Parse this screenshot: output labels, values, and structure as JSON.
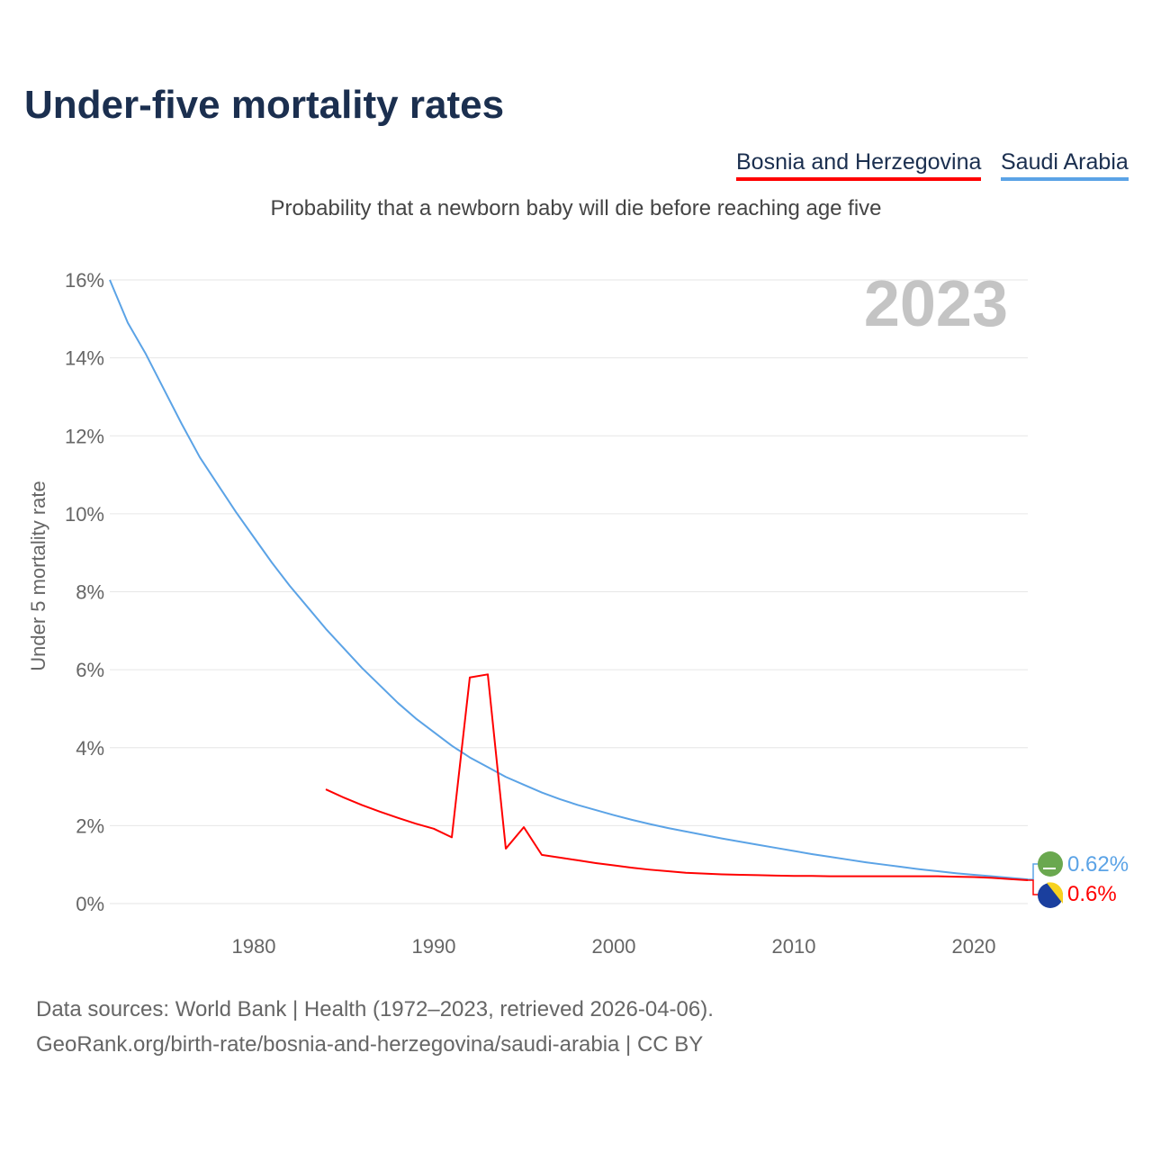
{
  "chart_data": {
    "type": "line",
    "title": "Under-five mortality rates",
    "subtitle": "Probability that a newborn baby will die before reaching age five",
    "ylabel": "Under 5 mortality rate",
    "xlabel": "",
    "xlim": [
      1972,
      2023
    ],
    "ylim": [
      0,
      16
    ],
    "x_ticks": [
      1980,
      1990,
      2000,
      2010,
      2020
    ],
    "y_ticks": [
      "0%",
      "2%",
      "4%",
      "6%",
      "8%",
      "10%",
      "12%",
      "14%",
      "16%"
    ],
    "y_tick_values": [
      0,
      2,
      4,
      6,
      8,
      10,
      12,
      14,
      16
    ],
    "grid": true,
    "year_label": "2023",
    "legend_position": "top-right",
    "series": [
      {
        "name": "Bosnia and Herzegovina",
        "color": "#ff0000",
        "start_year": 1984,
        "values": [
          2.93,
          2.72,
          2.53,
          2.36,
          2.2,
          2.05,
          1.92,
          1.7,
          5.8,
          5.88,
          1.41,
          1.96,
          1.25,
          1.18,
          1.11,
          1.04,
          0.98,
          0.92,
          0.87,
          0.83,
          0.79,
          0.77,
          0.75,
          0.74,
          0.73,
          0.72,
          0.71,
          0.71,
          0.7,
          0.7,
          0.7,
          0.7,
          0.7,
          0.7,
          0.7,
          0.69,
          0.68,
          0.66,
          0.63,
          0.6
        ],
        "end_label": "0.6%"
      },
      {
        "name": "Saudi Arabia",
        "color": "#5ba3e6",
        "start_year": 1972,
        "values": [
          16.0,
          14.9,
          14.1,
          13.2,
          12.3,
          11.45,
          10.75,
          10.05,
          9.4,
          8.75,
          8.15,
          7.6,
          7.05,
          6.55,
          6.05,
          5.6,
          5.15,
          4.75,
          4.4,
          4.05,
          3.75,
          3.5,
          3.25,
          3.05,
          2.85,
          2.68,
          2.53,
          2.4,
          2.27,
          2.15,
          2.04,
          1.94,
          1.85,
          1.76,
          1.67,
          1.59,
          1.51,
          1.43,
          1.35,
          1.27,
          1.2,
          1.13,
          1.06,
          1.0,
          0.94,
          0.88,
          0.83,
          0.78,
          0.74,
          0.7,
          0.66,
          0.62
        ],
        "end_label": "0.62%"
      }
    ]
  },
  "footer": {
    "line1": "Data sources: World Bank | Health (1972–2023, retrieved 2026-04-06).",
    "line2": "GeoRank.org/birth-rate/bosnia-and-herzegovina/saudi-arabia | CC BY"
  }
}
